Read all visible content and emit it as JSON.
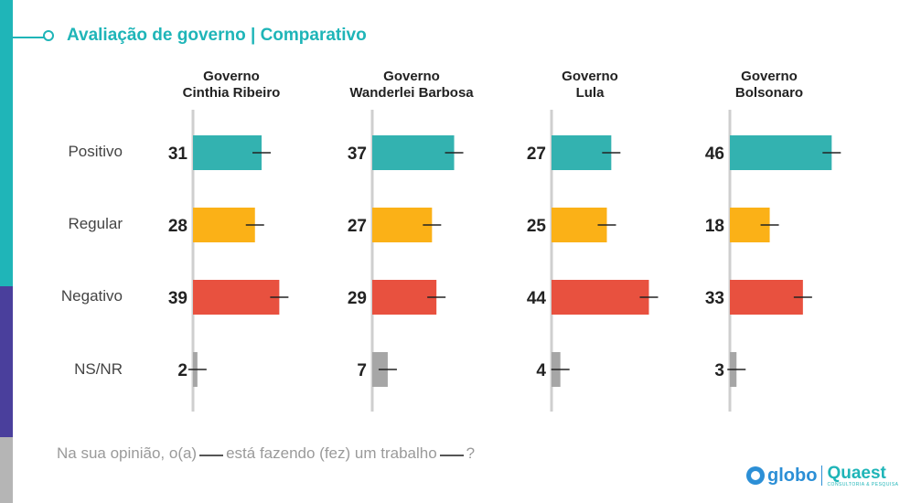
{
  "title": "Avaliação de governo | Comparativo",
  "footnote": {
    "part1": "Na sua opinião, o(a)",
    "part2": "está fazendo (fez) um trabalho",
    "part3": "?"
  },
  "logos": {
    "globo": "globo",
    "quaest": "Quaest",
    "quaest_sub": "CONSULTORIA & PESQUISA"
  },
  "colors": {
    "teal": "#1fb5b8",
    "purple": "#4a3f9c",
    "Positivo": "#33b2b0",
    "Regular": "#fbb117",
    "Negativo": "#e8513f",
    "NS/NR": "#a6a6a6"
  },
  "chart_data": {
    "type": "bar",
    "orientation": "horizontal",
    "categories": [
      "Positivo",
      "Regular",
      "Negativo",
      "NS/NR"
    ],
    "panels": [
      {
        "title_line1": "Governo",
        "title_line2": "Cinthia Ribeiro",
        "values": [
          31,
          28,
          39,
          2
        ]
      },
      {
        "title_line1": "Governo",
        "title_line2": "Wanderlei Barbosa",
        "values": [
          37,
          27,
          29,
          7
        ]
      },
      {
        "title_line1": "Governo",
        "title_line2": "Lula",
        "values": [
          27,
          25,
          44,
          4
        ]
      },
      {
        "title_line1": "Governo",
        "title_line2": "Bolsonaro",
        "values": [
          46,
          18,
          33,
          3
        ]
      }
    ],
    "error_bars": true,
    "grid": false
  }
}
